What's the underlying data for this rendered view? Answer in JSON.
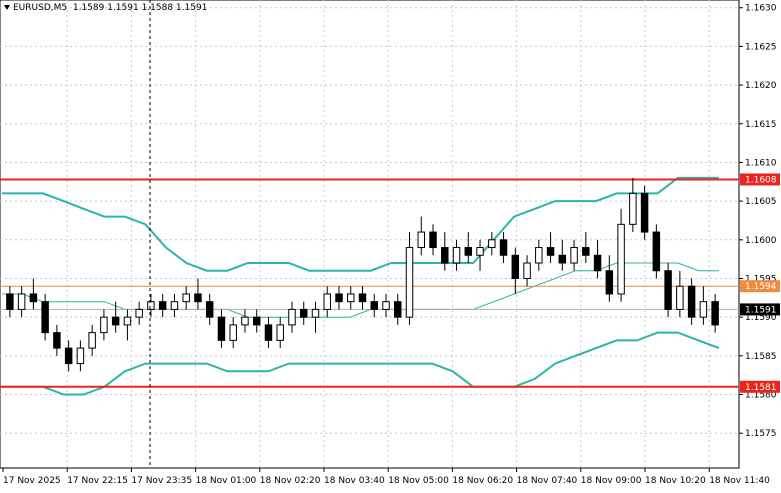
{
  "chart_header": {
    "symbol": "EURUSD,M5",
    "ohlc": "1.1589 1.1591 1.1588 1.1591"
  },
  "chart_data": {
    "type": "candlestick",
    "title": "EURUSD,M5",
    "ylim": [
      1.15705,
      1.1631
    ],
    "y_ticks": [
      "1.1575",
      "1.1580",
      "1.1585",
      "1.1590",
      "1.1595",
      "1.1600",
      "1.1605",
      "1.1610",
      "1.1615",
      "1.1620",
      "1.1625",
      "1.1630"
    ],
    "x_ticks": [
      "17 Nov 2025",
      "17 Nov 22:15",
      "17 Nov 23:35",
      "18 Nov 01:00",
      "18 Nov 02:20",
      "18 Nov 03:40",
      "18 Nov 05:00",
      "18 Nov 06:20",
      "18 Nov 07:40",
      "18 Nov 09:00",
      "18 Nov 10:20",
      "18 Nov 11:40"
    ],
    "grid": true,
    "levels": [
      {
        "label": "1.1608",
        "value": 1.16078,
        "color": "#e8241c",
        "width": 2
      },
      {
        "label": "1.1594",
        "value": 1.1594,
        "color": "#f08a3c",
        "width": 1
      },
      {
        "label": "1.1581",
        "value": 1.1581,
        "color": "#e8241c",
        "width": 2
      }
    ],
    "last_price": {
      "label": "1.1591",
      "value": 1.1591
    },
    "bollinger": {
      "color": "#2bb5a8",
      "upper": [
        1.1606,
        1.1606,
        1.1606,
        1.1605,
        1.1604,
        1.1603,
        1.1603,
        1.1602,
        1.1599,
        1.1597,
        1.1596,
        1.1596,
        1.1597,
        1.1597,
        1.1597,
        1.1596,
        1.1596,
        1.1596,
        1.1596,
        1.1597,
        1.1597,
        1.1597,
        1.1597,
        1.1597,
        1.16,
        1.1603,
        1.1604,
        1.1605,
        1.1605,
        1.1605,
        1.1606,
        1.1606,
        1.1606,
        1.1608,
        1.1608,
        1.1608
      ],
      "middle": [
        1.1593,
        1.1593,
        1.1592,
        1.1592,
        1.1592,
        1.1592,
        1.1591,
        1.1591,
        1.1591,
        1.1591,
        1.1591,
        1.1591,
        1.159,
        1.159,
        1.159,
        1.159,
        1.159,
        1.159,
        1.1591,
        1.1591,
        1.1591,
        1.1591,
        1.1591,
        1.1591,
        1.1592,
        1.1593,
        1.1594,
        1.1595,
        1.1596,
        1.1596,
        1.1597,
        1.1597,
        1.1597,
        1.1597,
        1.1596,
        1.1596
      ],
      "lower": [
        1.1581,
        1.1581,
        1.1581,
        1.158,
        1.158,
        1.1581,
        1.1583,
        1.1584,
        1.1584,
        1.1584,
        1.1584,
        1.1583,
        1.1583,
        1.1583,
        1.1584,
        1.1584,
        1.1584,
        1.1584,
        1.1584,
        1.1584,
        1.1584,
        1.1584,
        1.1583,
        1.1581,
        1.1581,
        1.1581,
        1.1582,
        1.1584,
        1.1585,
        1.1586,
        1.1587,
        1.1587,
        1.1588,
        1.1588,
        1.1587,
        1.1586
      ]
    },
    "candles": [
      [
        1.1593,
        1.1594,
        1.159,
        1.1591
      ],
      [
        1.1591,
        1.1594,
        1.159,
        1.1593
      ],
      [
        1.1593,
        1.1595,
        1.1591,
        1.1592
      ],
      [
        1.1592,
        1.1593,
        1.1587,
        1.1588
      ],
      [
        1.1588,
        1.1589,
        1.1585,
        1.1586
      ],
      [
        1.1586,
        1.1587,
        1.1583,
        1.1584
      ],
      [
        1.1584,
        1.1587,
        1.1583,
        1.1586
      ],
      [
        1.1586,
        1.1589,
        1.1585,
        1.1588
      ],
      [
        1.1588,
        1.1591,
        1.1587,
        1.159
      ],
      [
        1.159,
        1.1592,
        1.1588,
        1.1589
      ],
      [
        1.1589,
        1.1591,
        1.1587,
        1.159
      ],
      [
        1.159,
        1.1592,
        1.1589,
        1.1591
      ],
      [
        1.1591,
        1.1593,
        1.159,
        1.1592
      ],
      [
        1.1592,
        1.1593,
        1.159,
        1.1591
      ],
      [
        1.1591,
        1.1593,
        1.159,
        1.1592
      ],
      [
        1.1592,
        1.1594,
        1.1591,
        1.1593
      ],
      [
        1.1593,
        1.1595,
        1.1591,
        1.1592
      ],
      [
        1.1592,
        1.1593,
        1.1589,
        1.159
      ],
      [
        1.159,
        1.1591,
        1.1586,
        1.1587
      ],
      [
        1.1587,
        1.159,
        1.1586,
        1.1589
      ],
      [
        1.1589,
        1.1591,
        1.1588,
        1.159
      ],
      [
        1.159,
        1.1591,
        1.1588,
        1.1589
      ],
      [
        1.1589,
        1.159,
        1.1586,
        1.1587
      ],
      [
        1.1587,
        1.159,
        1.1586,
        1.1589
      ],
      [
        1.1589,
        1.1592,
        1.1588,
        1.1591
      ],
      [
        1.1591,
        1.1592,
        1.1589,
        1.159
      ],
      [
        1.159,
        1.1592,
        1.1588,
        1.1591
      ],
      [
        1.1591,
        1.1594,
        1.159,
        1.1593
      ],
      [
        1.1593,
        1.1594,
        1.1591,
        1.1592
      ],
      [
        1.1592,
        1.1594,
        1.1591,
        1.1593
      ],
      [
        1.1593,
        1.1594,
        1.1591,
        1.1592
      ],
      [
        1.1592,
        1.1593,
        1.159,
        1.1591
      ],
      [
        1.1591,
        1.1593,
        1.159,
        1.1592
      ],
      [
        1.1592,
        1.1593,
        1.1589,
        1.159
      ],
      [
        1.159,
        1.1601,
        1.1589,
        1.1599
      ],
      [
        1.1599,
        1.1603,
        1.1598,
        1.1601
      ],
      [
        1.1601,
        1.1602,
        1.1598,
        1.1599
      ],
      [
        1.1599,
        1.1601,
        1.1596,
        1.1597
      ],
      [
        1.1597,
        1.16,
        1.1596,
        1.1599
      ],
      [
        1.1599,
        1.1601,
        1.1597,
        1.1598
      ],
      [
        1.1598,
        1.16,
        1.1596,
        1.1599
      ],
      [
        1.1599,
        1.1601,
        1.1598,
        1.16
      ],
      [
        1.16,
        1.1601,
        1.1597,
        1.1598
      ],
      [
        1.1598,
        1.1599,
        1.1593,
        1.1595
      ],
      [
        1.1595,
        1.1598,
        1.1594,
        1.1597
      ],
      [
        1.1597,
        1.16,
        1.1596,
        1.1599
      ],
      [
        1.1599,
        1.1601,
        1.1597,
        1.1598
      ],
      [
        1.1598,
        1.16,
        1.1596,
        1.1597
      ],
      [
        1.1597,
        1.16,
        1.1596,
        1.1599
      ],
      [
        1.1599,
        1.1601,
        1.1597,
        1.1598
      ],
      [
        1.1598,
        1.16,
        1.1595,
        1.1596
      ],
      [
        1.1596,
        1.1598,
        1.1592,
        1.1593
      ],
      [
        1.1593,
        1.1604,
        1.1592,
        1.1602
      ],
      [
        1.1602,
        1.1608,
        1.1601,
        1.1606
      ],
      [
        1.1606,
        1.1607,
        1.16,
        1.1601
      ],
      [
        1.1601,
        1.1602,
        1.1595,
        1.1596
      ],
      [
        1.1596,
        1.1597,
        1.159,
        1.1591
      ],
      [
        1.1591,
        1.1596,
        1.159,
        1.1594
      ],
      [
        1.1594,
        1.1595,
        1.1589,
        1.159
      ],
      [
        1.159,
        1.1594,
        1.1589,
        1.1592
      ],
      [
        1.1592,
        1.1593,
        1.1588,
        1.1589
      ]
    ]
  }
}
